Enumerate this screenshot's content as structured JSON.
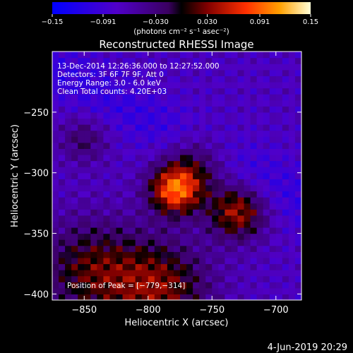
{
  "chart_data": {
    "type": "heatmap",
    "title": "Reconstructed RHESSI Image",
    "xlabel": "Heliocentric X (arcsec)",
    "ylabel": "Heliocentric Y (arcsec)",
    "xlim": [
      -875,
      -680
    ],
    "ylim": [
      -405,
      -200
    ],
    "x_ticks": [
      -850,
      -800,
      -750,
      -700
    ],
    "x_tick_labels": [
      "−850",
      "−800",
      "−750",
      "−700"
    ],
    "y_ticks": [
      -400,
      -350,
      -300,
      -250
    ],
    "y_tick_labels": [
      "−400",
      "−350",
      "−300",
      "−250"
    ],
    "colorbar": {
      "range": [
        -0.15,
        0.15
      ],
      "ticks": [
        -0.15,
        -0.091,
        -0.03,
        0.03,
        0.091,
        0.15
      ],
      "tick_labels": [
        "−0.15",
        "−0.091",
        "−0.030",
        "0.030",
        "0.091",
        "0.15"
      ],
      "label": "(photons cm⁻² s⁻¹ asec⁻²)"
    },
    "annotations": [
      "13-Dec-2014 12:26:36.000 to 12:27:52.000",
      "Detectors: 3F 6F 7F 9F, Att 0",
      "Energy Range: 3.0 - 6.0 keV",
      "Clean    Total counts: 4.20E+03"
    ],
    "peak_label": "Position of Peak = [−779,−314]",
    "peak": {
      "x": -779,
      "y": -314
    },
    "sources": [
      {
        "x": -779,
        "y": -314,
        "sigma": 14,
        "amp": 0.15
      },
      {
        "x": -730,
        "y": -332,
        "sigma": 16,
        "amp": 0.11
      },
      {
        "x": -762,
        "y": -292,
        "sigma": 18,
        "amp": 0.07
      },
      {
        "x": -845,
        "y": -380,
        "sigma": 30,
        "amp": 0.08
      },
      {
        "x": -790,
        "y": -395,
        "sigma": 28,
        "amp": 0.09
      },
      {
        "x": -850,
        "y": -272,
        "sigma": 14,
        "amp": 0.05
      }
    ],
    "background_level": -0.07,
    "dark_band": {
      "description": "negative residual band from upper-right to left"
    },
    "grid": false
  },
  "footer": {
    "date": "4-Jun-2019 20:29"
  }
}
